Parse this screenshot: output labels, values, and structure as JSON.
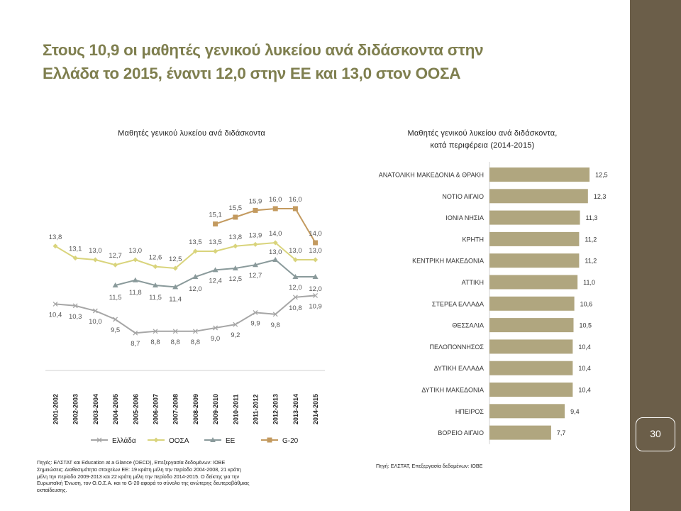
{
  "slide": {
    "title_line1": "Στους 10,9 οι μαθητές γενικού λυκείου ανά διδάσκοντα στην",
    "title_line2": "Ελλάδα το 2015, έναντι 12,0 στην ΕΕ και 13,0 στον ΟΟΣΑ",
    "page_number": "30",
    "title_color": "#7f7f4f",
    "band_color": "#6b5e49"
  },
  "notes": {
    "left_source": "Πηγές: ΕΛΣΤΑΤ και Education at a Glance (OECD), Επεξεργασία δεδομένων: ΙΟΒΕ",
    "left_note_1": "Σημειώσεις: Διαθεσιμότητα στοιχείων ΕΕ: 19 κράτη μέλη την περίοδο 2004-2008, 21 κράτη",
    "left_note_2": "μέλη την περίοδο 2009-2013 και 22 κράτη μέλη την περίοδο 2014-2015. Ο δείκτης για την",
    "left_note_3": "Ευρωπαϊκή Ένωση, τον Ο.Ο.Σ.Α. και το G-20 αφορά το σύνολο της ανώτερης δευτεροβάθμιας",
    "left_note_4": "εκπαίδευσης.",
    "right_source": "Πηγή: ΕΛΣΤΑΤ, Επεξεργασία δεδομένων: ΙΟΒΕ"
  },
  "chart_data": [
    {
      "type": "line",
      "title": "Μαθητές γενικού λυκείου ανά διδάσκοντα",
      "categories": [
        "2001-2002",
        "2002-2003",
        "2003-2004",
        "2004-2005",
        "2005-2006",
        "2006-2007",
        "2007-2008",
        "2008-2009",
        "2009-2010",
        "2010-2011",
        "2011-2012",
        "2012-2013",
        "2013-2014",
        "2014-2015"
      ],
      "series": [
        {
          "name": "Ελλάδα",
          "color": "#a6a6a6",
          "marker": "x",
          "values": [
            10.4,
            10.3,
            10.0,
            9.5,
            8.7,
            8.8,
            8.8,
            8.8,
            9.0,
            9.2,
            9.9,
            9.8,
            10.8,
            10.9
          ],
          "labels": [
            "10,4",
            "10,3",
            "10,0",
            "9,5",
            "8,7",
            "8,8",
            "8,8",
            "8,8",
            "9,0",
            "9,2",
            "9,9",
            "9,8",
            "10,8",
            "10,9"
          ]
        },
        {
          "name": "ΟΟΣΑ",
          "color": "#d9d47c",
          "marker": "diamond",
          "values": [
            13.8,
            13.1,
            13.0,
            12.7,
            13.0,
            12.6,
            12.5,
            13.5,
            13.5,
            13.8,
            13.9,
            14.0,
            13.0,
            13.0
          ],
          "labels": [
            "13,8",
            "13,1",
            "13,0",
            "12,7",
            "13,0",
            "12,6",
            "12,5",
            "13,5",
            "13,5",
            "13,8",
            "13,9",
            "14,0",
            "13,0",
            "13,0"
          ]
        },
        {
          "name": "ΕΕ",
          "color": "#8a9a9b",
          "marker": "triangle",
          "values": [
            null,
            null,
            null,
            11.5,
            11.8,
            11.5,
            11.4,
            12.0,
            12.4,
            12.5,
            12.7,
            13.0,
            12.0,
            12.0
          ],
          "labels": [
            null,
            null,
            null,
            "11,5",
            "11,8",
            "11,5",
            "11,4",
            "12,0",
            "12,4",
            "12,5",
            "12,7",
            "13,0",
            "12,0",
            "12,0"
          ]
        },
        {
          "name": "G-20",
          "color": "#c39a5f",
          "marker": "square",
          "values": [
            null,
            null,
            null,
            null,
            null,
            null,
            null,
            null,
            15.1,
            15.5,
            15.9,
            16.0,
            16.0,
            14.0
          ],
          "labels": [
            null,
            null,
            null,
            null,
            null,
            null,
            null,
            null,
            "15,1",
            "15,5",
            "15,9",
            "16,0",
            "16,0",
            "14,0"
          ]
        }
      ],
      "ylim": [
        6.5,
        17
      ],
      "grid": false,
      "legend": "bottom"
    },
    {
      "type": "bar",
      "orientation": "horizontal",
      "title_line1": "Μαθητές γενικού λυκείου ανά διδάσκοντα,",
      "title_line2": "κατά περιφέρεια (2014-2015)",
      "color": "#b0a67f",
      "categories": [
        "ΑΝΑΤΟΛΙΚΗ ΜΑΚΕΔΟΝΙΑ & ΘΡΑΚΗ",
        "ΝΟΤΙΟ ΑΙΓΑΙΟ",
        "ΙΟΝΙΑ ΝΗΣΙΑ",
        "ΚΡΗΤΗ",
        "ΚΕΝΤΡΙΚΗ ΜΑΚΕΔΟΝΙΑ",
        "ΑΤΤΙΚΗ",
        "ΣΤΕΡΕΑ ΕΛΛΑΔΑ",
        "ΘΕΣΣΑΛΙΑ",
        "ΠΕΛΟΠΟΝΝΗΣΟΣ",
        "ΔΥΤΙΚΗ ΕΛΛΑΔΑ",
        "ΔΥΤΙΚΗ ΜΑΚΕΔΟΝΙΑ",
        "ΗΠΕΙΡΟΣ",
        "ΒΟΡΕΙΟ ΑΙΓΑΙΟ"
      ],
      "values": [
        12.5,
        12.3,
        11.3,
        11.2,
        11.2,
        11.0,
        10.6,
        10.5,
        10.4,
        10.4,
        10.4,
        9.4,
        7.7
      ],
      "labels": [
        "12,5",
        "12,3",
        "11,3",
        "11,2",
        "11,2",
        "11,0",
        "10,6",
        "10,5",
        "10,4",
        "10,4",
        "10,4",
        "9,4",
        "7,7"
      ],
      "xlim": [
        0,
        14
      ]
    }
  ]
}
